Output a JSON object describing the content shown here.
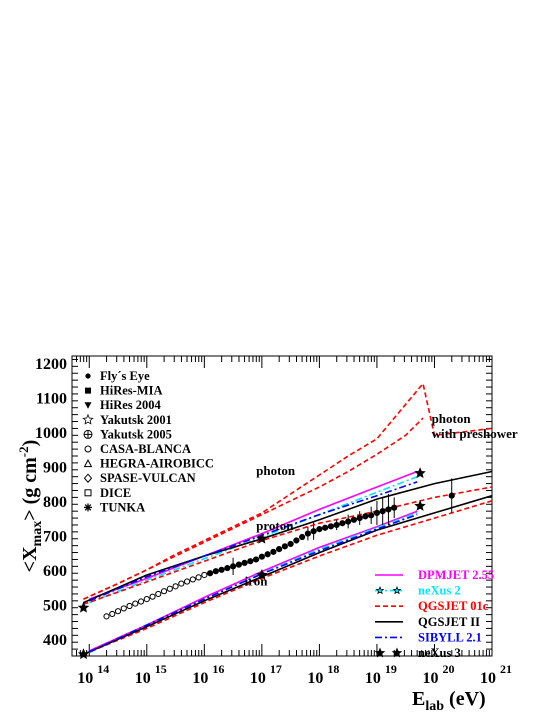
{
  "chart_data": {
    "type": "line",
    "xscale": "log",
    "xlim": [
      13.7,
      21
    ],
    "ylim": [
      350,
      1220
    ],
    "ylabel": {
      "main": "<X",
      "sub": "max",
      "rest": "> (g cm",
      "sup": "-2",
      "close": ")"
    },
    "xlabel": {
      "main": "E",
      "sub": "lab",
      "rest": " (eV)"
    },
    "y_ticks": [
      400,
      500,
      600,
      700,
      800,
      900,
      1000,
      1100,
      1200
    ],
    "x_ticks": [
      {
        "base": "10",
        "exp": "14",
        "v": 14
      },
      {
        "base": "10",
        "exp": "15",
        "v": 15
      },
      {
        "base": "10",
        "exp": "16",
        "v": 16
      },
      {
        "base": "10",
        "exp": "17",
        "v": 17
      },
      {
        "base": "10",
        "exp": "18",
        "v": 18
      },
      {
        "base": "10",
        "exp": "19",
        "v": 19
      },
      {
        "base": "10",
        "exp": "20",
        "v": 20
      },
      {
        "base": "10",
        "exp": "21",
        "v": 21
      }
    ],
    "annotations": [
      {
        "text": "photon",
        "x": 16.9,
        "y": 875
      },
      {
        "text": "proton",
        "x": 16.9,
        "y": 715
      },
      {
        "text": "iron",
        "x": 16.7,
        "y": 555
      },
      {
        "text": "photon",
        "x": 19.95,
        "y": 1025
      },
      {
        "text": "with preshower",
        "x": 19.95,
        "y": 982
      }
    ],
    "data_legend": [
      {
        "label": "Fly´s Eye",
        "marker": "dot"
      },
      {
        "label": "HiRes-MIA",
        "marker": "square"
      },
      {
        "label": "HiRes 2004",
        "marker": "triangle-down"
      },
      {
        "label": "Yakutsk 2001",
        "marker": "star-open"
      },
      {
        "label": "Yakutsk 2005",
        "marker": "cross-circle"
      },
      {
        "label": "CASA-BLANCA",
        "marker": "circle-open"
      },
      {
        "label": "HEGRA-AIROBICC",
        "marker": "triangle-open"
      },
      {
        "label": "SPASE-VULCAN",
        "marker": "diamond-open"
      },
      {
        "label": "DICE",
        "marker": "square-open"
      },
      {
        "label": "TUNKA",
        "marker": "asterisk"
      }
    ],
    "model_legend": [
      {
        "label": "DPMJET 2.55",
        "color": "#ff00ff",
        "style": "solid"
      },
      {
        "label": "neXus 2",
        "color": "#00e5ff",
        "style": "dashdot-star"
      },
      {
        "label": "QGSJET 01c",
        "color": "#ff0000",
        "style": "dashed"
      },
      {
        "label": "QGSJET II",
        "color": "#000000",
        "style": "solid"
      },
      {
        "label": "SIBYLL 2.1",
        "color": "#0000ff",
        "style": "dashdot"
      },
      {
        "label": "neXus 3",
        "color": "#000000",
        "style": "stars"
      }
    ],
    "series": [
      {
        "name": "DPMJET 2.55",
        "color": "#ff00ff",
        "style": "solid",
        "x": [
          14,
          15,
          16,
          17,
          18,
          19,
          19.7
        ],
        "y": [
          515,
          575,
          640,
          705,
          775,
          840,
          885
        ]
      },
      {
        "name": "DPMJET 2.55",
        "color": "#ff00ff",
        "style": "solid",
        "x": [
          14,
          15,
          16,
          17,
          18,
          19,
          19.7
        ],
        "y": [
          365,
          440,
          520,
          595,
          665,
          725,
          770
        ]
      },
      {
        "name": "neXus 2",
        "color": "#00e5ff",
        "style": "dashdot",
        "x": [
          14,
          15,
          16,
          17,
          18,
          19,
          19.7
        ],
        "y": [
          505,
          570,
          632,
          695,
          760,
          825,
          870
        ]
      },
      {
        "name": "neXus 2",
        "color": "#00e5ff",
        "style": "dashdot",
        "x": [
          14,
          15,
          16,
          17,
          18,
          19,
          19.7
        ],
        "y": [
          360,
          438,
          515,
          590,
          660,
          722,
          765
        ]
      },
      {
        "name": "QGSJET 01c",
        "color": "#ff0000",
        "style": "dashed",
        "x": [
          13.9,
          14.5,
          15,
          15.5,
          16,
          16.5,
          17,
          17.5,
          18,
          18.5,
          19,
          19.5,
          19.8,
          20,
          20.5,
          21
        ],
        "y": [
          515,
          560,
          600,
          645,
          685,
          725,
          765,
          820,
          875,
          930,
          980,
          1080,
          1140,
          990,
          1000,
          1010
        ]
      },
      {
        "name": "QGSJET 01c",
        "color": "#ff0000",
        "style": "dashed",
        "x": [
          13.9,
          14.5,
          15,
          15.5,
          16,
          16.5,
          17,
          17.5,
          18,
          18.5,
          19,
          19.5,
          19.8
        ],
        "y": [
          515,
          560,
          600,
          640,
          680,
          720,
          760,
          800,
          840,
          885,
          935,
          990,
          1040
        ]
      },
      {
        "name": "QGSJET 01c",
        "color": "#ff0000",
        "style": "dashed",
        "x": [
          13.9,
          15,
          16,
          17,
          18,
          19,
          20,
          21
        ],
        "y": [
          500,
          565,
          625,
          685,
          735,
          770,
          810,
          840
        ]
      },
      {
        "name": "QGSJET 01c",
        "color": "#ff0000",
        "style": "dashed",
        "x": [
          13.9,
          15,
          16,
          17,
          18,
          19,
          20,
          21
        ],
        "y": [
          355,
          430,
          505,
          575,
          640,
          700,
          750,
          800
        ]
      },
      {
        "name": "QGSJET II",
        "color": "#000000",
        "style": "solid",
        "x": [
          13.9,
          15,
          16,
          17,
          18,
          19,
          20,
          21
        ],
        "y": [
          505,
          585,
          640,
          690,
          745,
          805,
          850,
          885
        ]
      },
      {
        "name": "QGSJET II",
        "color": "#000000",
        "style": "solid",
        "x": [
          13.9,
          15,
          16,
          17,
          18,
          19,
          20,
          21
        ],
        "y": [
          355,
          435,
          510,
          580,
          650,
          715,
          765,
          815
        ]
      },
      {
        "name": "SIBYLL 2.1",
        "color": "#0000ff",
        "style": "dashdot",
        "x": [
          14,
          15,
          16,
          17,
          18,
          19,
          19.7
        ],
        "y": [
          510,
          580,
          640,
          700,
          760,
          815,
          855
        ]
      },
      {
        "name": "SIBYLL 2.1",
        "color": "#0000ff",
        "style": "dashdot",
        "x": [
          14,
          15,
          16,
          17,
          18,
          19,
          19.7
        ],
        "y": [
          362,
          440,
          515,
          588,
          655,
          718,
          760
        ]
      }
    ],
    "nexus3_points": {
      "x": [
        13.9,
        17,
        19.75,
        13.9,
        17,
        19.75
      ],
      "y": [
        490,
        690,
        880,
        355,
        585,
        785
      ]
    },
    "measurements": {
      "x": [
        14.3,
        14.4,
        14.5,
        14.6,
        14.7,
        14.8,
        14.9,
        15,
        15.1,
        15.2,
        15.3,
        15.4,
        15.5,
        15.6,
        15.7,
        15.8,
        15.9,
        16,
        16.1,
        16.2,
        16.3,
        16.4,
        16.5,
        16.6,
        16.7,
        16.8,
        16.9,
        17,
        17.1,
        17.2,
        17.3,
        17.4,
        17.5,
        17.6,
        17.7,
        17.8,
        17.9,
        18,
        18.1,
        18.2,
        18.3,
        18.4,
        18.5,
        18.6,
        18.7,
        18.8,
        18.9,
        19,
        19.1,
        19.2,
        19.3,
        20.3
      ],
      "y": [
        465,
        472,
        480,
        488,
        495,
        502,
        508,
        515,
        522,
        530,
        538,
        545,
        552,
        560,
        566,
        572,
        578,
        585,
        590,
        596,
        600,
        605,
        610,
        615,
        620,
        625,
        630,
        638,
        645,
        652,
        660,
        668,
        675,
        685,
        695,
        705,
        712,
        718,
        722,
        726,
        730,
        735,
        740,
        745,
        750,
        755,
        758,
        765,
        770,
        775,
        780,
        815
      ],
      "err": [
        0,
        0,
        0,
        0,
        0,
        0,
        0,
        0,
        0,
        0,
        0,
        0,
        0,
        0,
        0,
        0,
        0,
        0,
        0,
        0,
        0,
        0,
        25,
        0,
        0,
        0,
        0,
        0,
        0,
        0,
        0,
        0,
        0,
        0,
        0,
        20,
        25,
        0,
        0,
        0,
        15,
        0,
        20,
        0,
        20,
        0,
        25,
        35,
        40,
        45,
        30,
        50
      ]
    }
  }
}
